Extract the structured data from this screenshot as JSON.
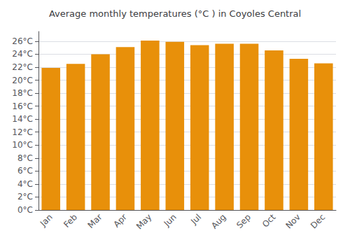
{
  "chart_data": {
    "type": "bar",
    "title": "Average monthly temperatures (°C ) in Coyoles Central",
    "categories": [
      "Jan",
      "Feb",
      "Mar",
      "Apr",
      "May",
      "Jun",
      "Jul",
      "Aug",
      "Sep",
      "Oct",
      "Nov",
      "Dec"
    ],
    "values": [
      21.9,
      22.5,
      24.0,
      25.1,
      26.1,
      25.9,
      25.4,
      25.6,
      25.6,
      24.6,
      23.3,
      22.6
    ],
    "color": "#E8900A",
    "ylim": [
      0,
      27.5
    ],
    "yticks": [
      {
        "value": 0,
        "label": "0°C"
      },
      {
        "value": 2,
        "label": "2°C"
      },
      {
        "value": 4,
        "label": "4°C"
      },
      {
        "value": 6,
        "label": "6°C"
      },
      {
        "value": 8,
        "label": "8°C"
      },
      {
        "value": 10,
        "label": "10°C"
      },
      {
        "value": 12,
        "label": "12°C"
      },
      {
        "value": 14,
        "label": "14°C"
      },
      {
        "value": 16,
        "label": "16°C"
      },
      {
        "value": 18,
        "label": "18°C"
      },
      {
        "value": 20,
        "label": "20°C"
      },
      {
        "value": 22,
        "label": "22°C"
      },
      {
        "value": 24,
        "label": "24°C"
      },
      {
        "value": 26,
        "label": "26°C"
      }
    ],
    "grid": true
  }
}
